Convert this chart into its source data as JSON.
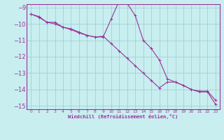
{
  "xlabel": "Windchill (Refroidissement éolien,°C)",
  "xlim": [
    -0.5,
    23.5
  ],
  "ylim": [
    -15.2,
    -8.8
  ],
  "xticks": [
    0,
    1,
    2,
    3,
    4,
    5,
    6,
    7,
    8,
    9,
    10,
    11,
    12,
    13,
    14,
    15,
    16,
    17,
    18,
    19,
    20,
    21,
    22,
    23
  ],
  "yticks": [
    -9,
    -10,
    -11,
    -12,
    -13,
    -14,
    -15
  ],
  "background_color": "#c8eef0",
  "line_color": "#993399",
  "grid_color": "#99cccc",
  "line1_x": [
    0,
    1,
    2,
    3,
    4,
    5,
    6,
    7,
    8,
    9,
    10,
    11,
    12,
    13,
    14,
    15,
    16,
    17,
    18,
    19,
    20,
    21,
    22,
    23
  ],
  "line1_y": [
    -9.4,
    -9.6,
    -9.9,
    -9.9,
    -10.2,
    -10.3,
    -10.5,
    -10.7,
    -10.8,
    -10.8,
    -9.7,
    -8.6,
    -8.75,
    -9.5,
    -11.0,
    -11.5,
    -12.2,
    -13.35,
    -13.55,
    -13.75,
    -14.0,
    -14.1,
    -14.1,
    -14.65
  ],
  "line2_x": [
    0,
    1,
    2,
    3,
    4,
    5,
    6,
    7,
    8,
    9,
    10,
    11,
    12,
    13,
    14,
    15,
    16,
    17,
    18,
    19,
    20,
    21,
    22,
    23
  ],
  "line2_y": [
    -9.4,
    -9.55,
    -9.9,
    -10.0,
    -10.2,
    -10.35,
    -10.55,
    -10.7,
    -10.8,
    -10.75,
    -11.2,
    -11.65,
    -12.1,
    -12.55,
    -13.0,
    -13.45,
    -13.9,
    -13.55,
    -13.55,
    -13.75,
    -14.0,
    -14.15,
    -14.15,
    -14.9
  ]
}
